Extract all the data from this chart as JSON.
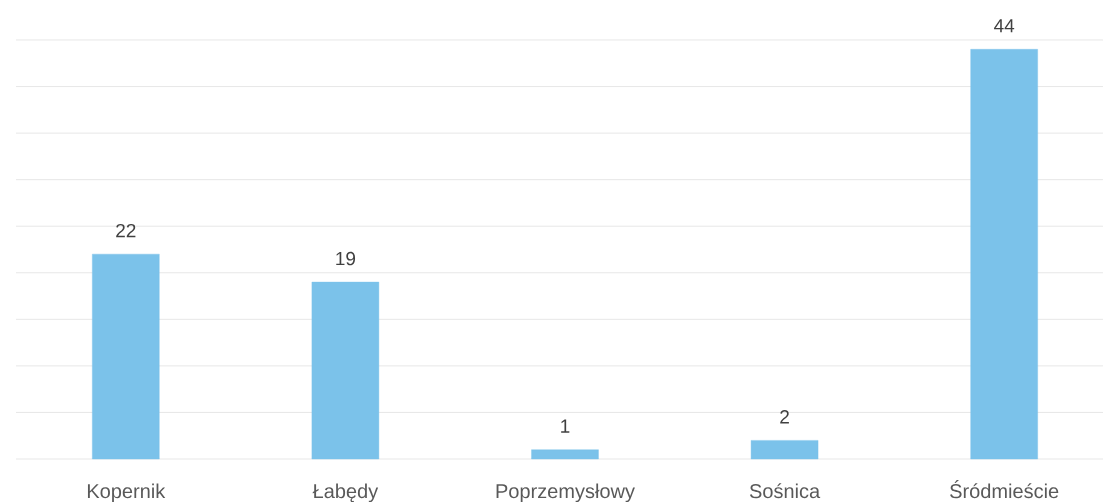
{
  "chart_data": {
    "type": "bar",
    "categories": [
      "Kopernik",
      "Łabędy",
      "Poprzemysłowy",
      "Sośnica",
      "Śródmieście"
    ],
    "values": [
      22,
      19,
      1,
      2,
      44
    ],
    "color": "#7bc2ea",
    "ylim": [
      0,
      45
    ],
    "yticks": [
      {
        "value": 0,
        "label": null
      },
      {
        "value": 5,
        "label": null
      },
      {
        "value": 10,
        "label": null
      },
      {
        "value": 15,
        "label": null
      },
      {
        "value": 20,
        "label": null
      },
      {
        "value": 25,
        "label": null
      },
      {
        "value": 30,
        "label": null
      },
      {
        "value": 35,
        "label": null
      },
      {
        "value": 40,
        "label": null
      },
      {
        "value": 45,
        "label": null
      }
    ],
    "grid": "y",
    "data_labels": true,
    "tick_labels": "x"
  }
}
